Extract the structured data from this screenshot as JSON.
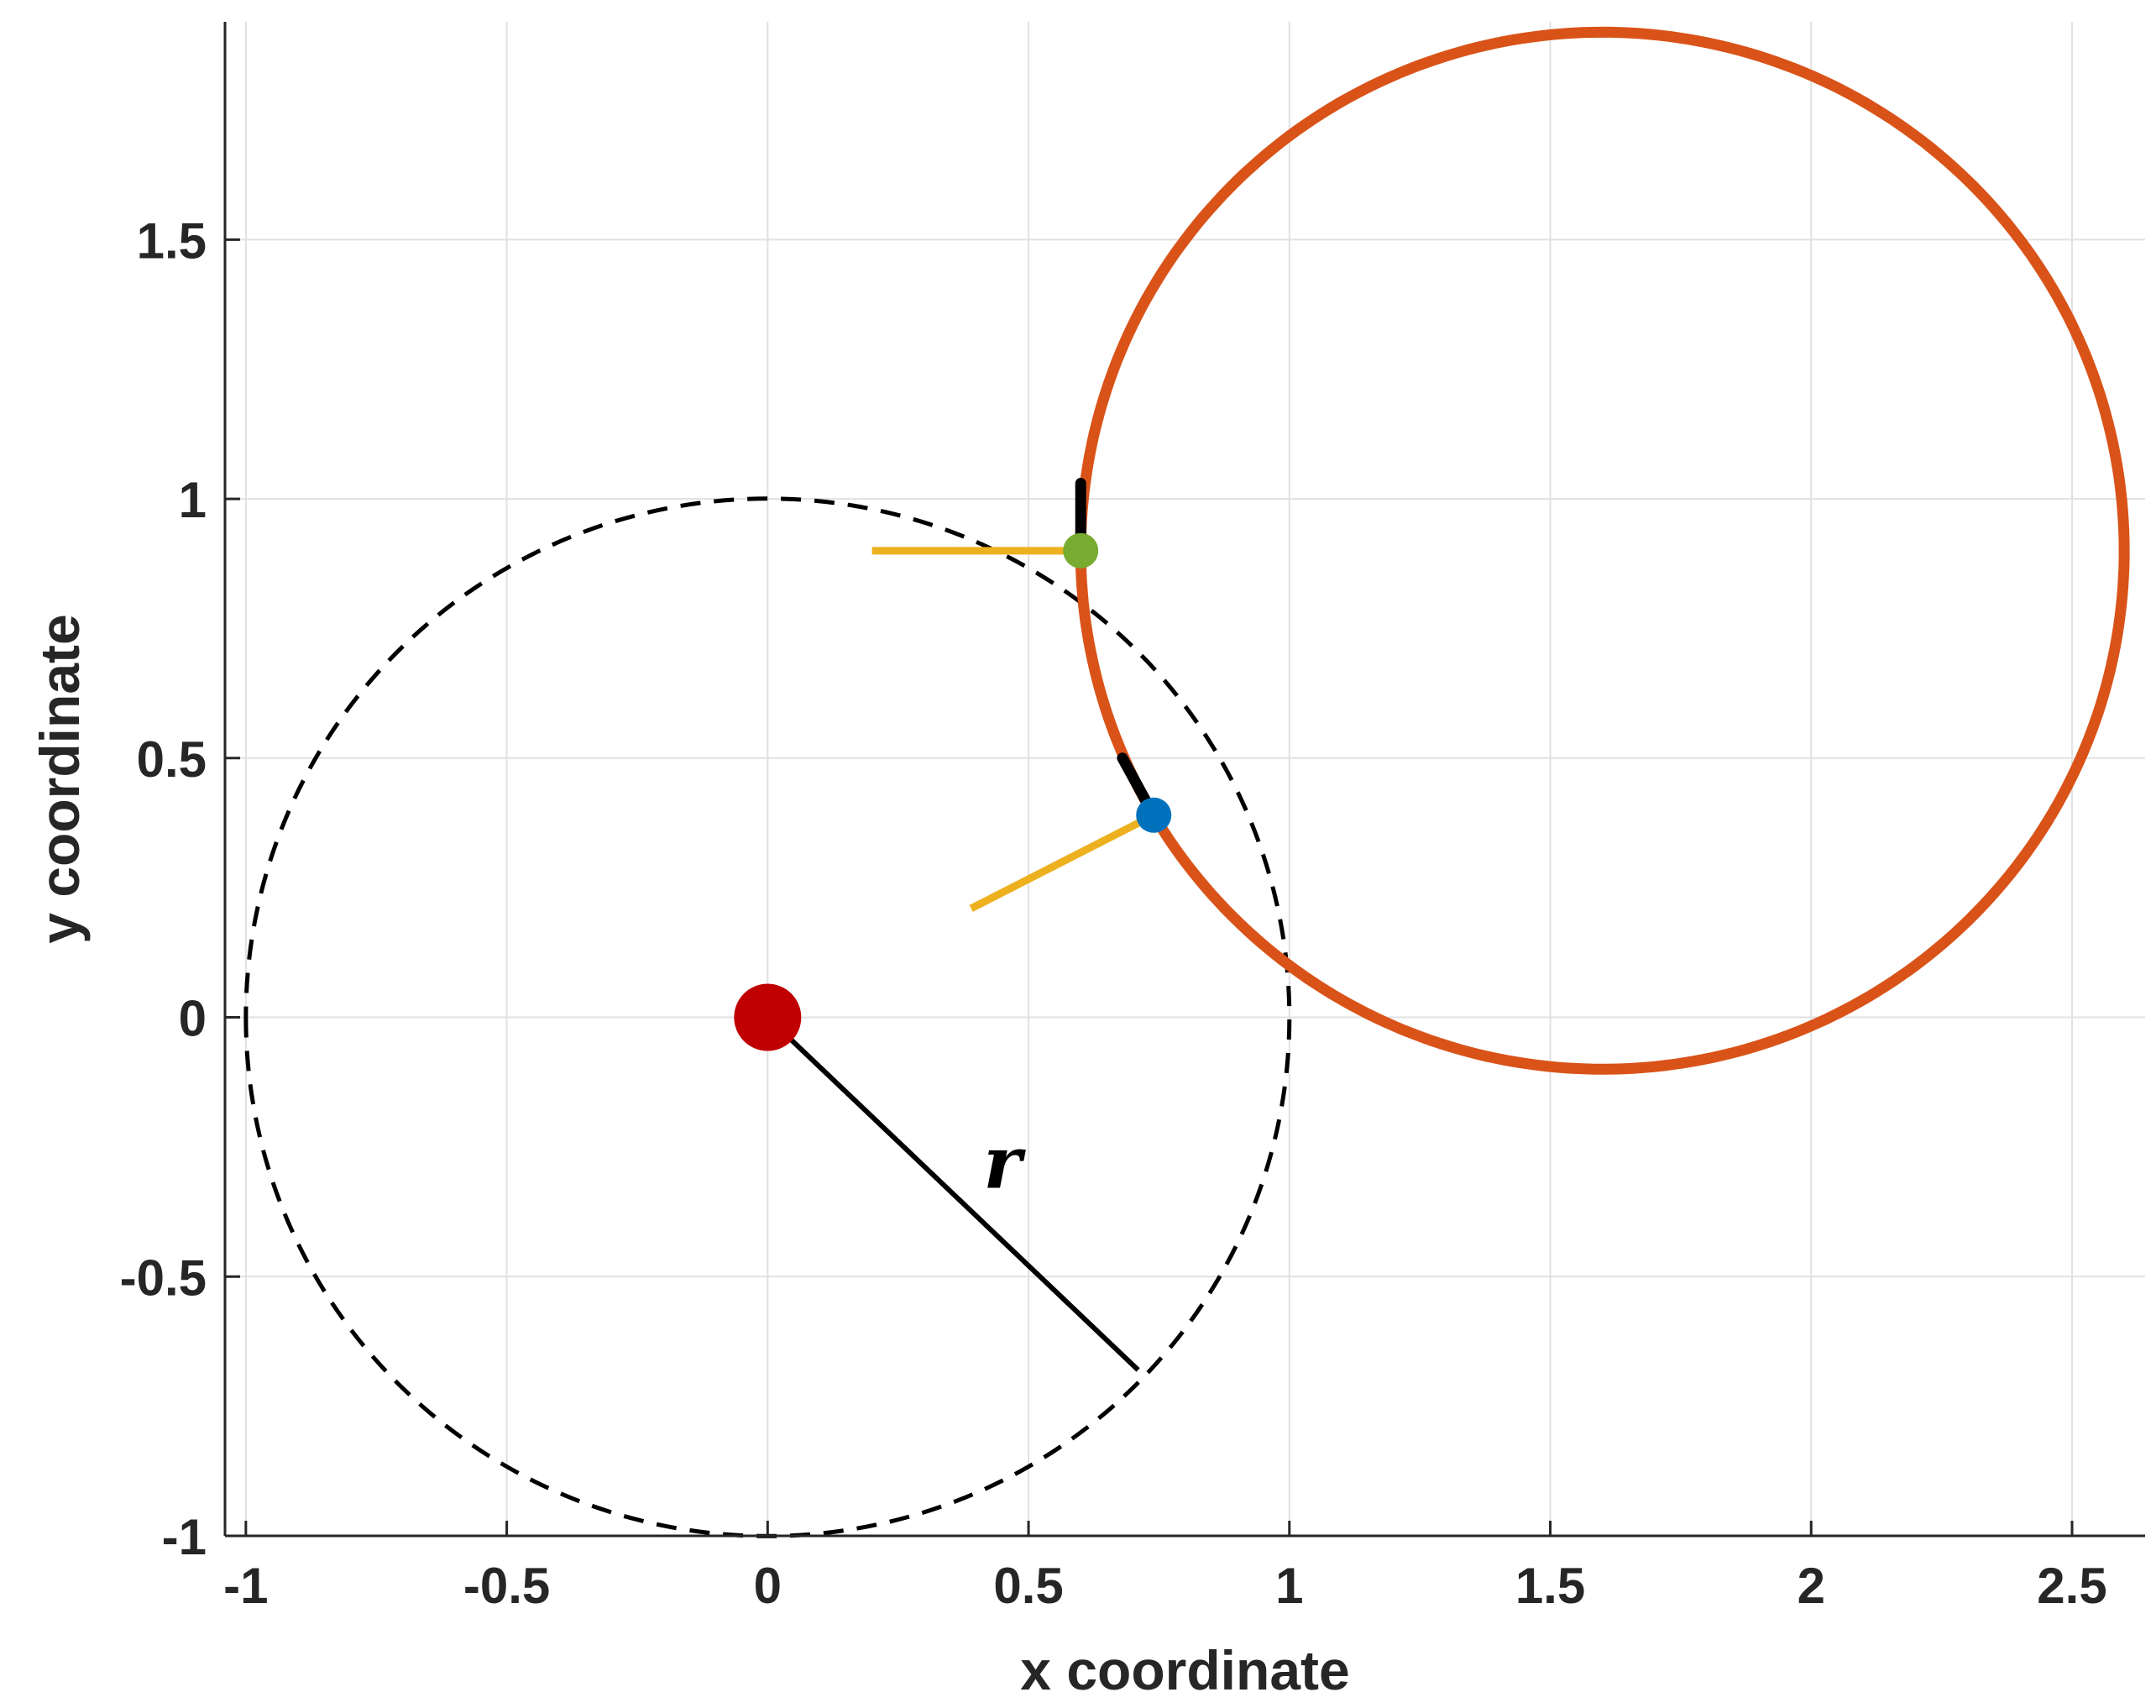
{
  "chart_data": {
    "type": "line",
    "xlabel": "x coordinate",
    "ylabel": "y coordinate",
    "xlim": [
      -1.04,
      2.64
    ],
    "ylim": [
      -1.0,
      1.92
    ],
    "xticks": [
      -1,
      -0.5,
      0,
      0.5,
      1,
      1.5,
      2,
      2.5
    ],
    "xtick_labels": [
      "-1",
      "-0.5",
      "0",
      "0.5",
      "1",
      "1.5",
      "2",
      "2.5"
    ],
    "yticks": [
      -1,
      -0.5,
      0,
      0.5,
      1,
      1.5
    ],
    "ytick_labels": [
      "-1",
      "-0.5",
      "0",
      "0.5",
      "1",
      "1.5"
    ],
    "grid": true,
    "annotations": [
      {
        "text": "r",
        "x": 0.45,
        "y": -0.28
      }
    ],
    "colors": {
      "orbit": "#D95319",
      "unit_circle": "#000000",
      "radius": "#000000",
      "heading": "#000000",
      "tangent": "#EDB120",
      "center": "#C00000",
      "start_point": "#77AC30",
      "end_point": "#0072BD",
      "grid": "#e1e1e1",
      "axis": "#262626"
    },
    "series": [
      {
        "kind": "dashed_circle",
        "center": [
          0,
          0
        ],
        "radius": 1.0
      },
      {
        "kind": "arc",
        "center": [
          1.6,
          0.9
        ],
        "radius": 1.0,
        "from_deg": 180,
        "to_deg": -210
      },
      {
        "kind": "line",
        "points": [
          [
            0,
            0
          ],
          [
            0.71,
            -0.68
          ]
        ]
      },
      {
        "kind": "line",
        "points": [
          [
            0.6,
            0.9
          ],
          [
            0.6,
            1.03
          ]
        ]
      },
      {
        "kind": "line",
        "points": [
          [
            0.74,
            0.39
          ],
          [
            0.68,
            0.5
          ]
        ]
      },
      {
        "kind": "line",
        "points": [
          [
            0.2,
            0.9
          ],
          [
            0.6,
            0.9
          ]
        ]
      },
      {
        "kind": "line",
        "points": [
          [
            0.39,
            0.21
          ],
          [
            0.74,
            0.39
          ]
        ]
      },
      {
        "kind": "point",
        "x": 0,
        "y": 0
      },
      {
        "kind": "point",
        "x": 0.6,
        "y": 0.9
      },
      {
        "kind": "point",
        "x": 0.74,
        "y": 0.39
      }
    ]
  }
}
